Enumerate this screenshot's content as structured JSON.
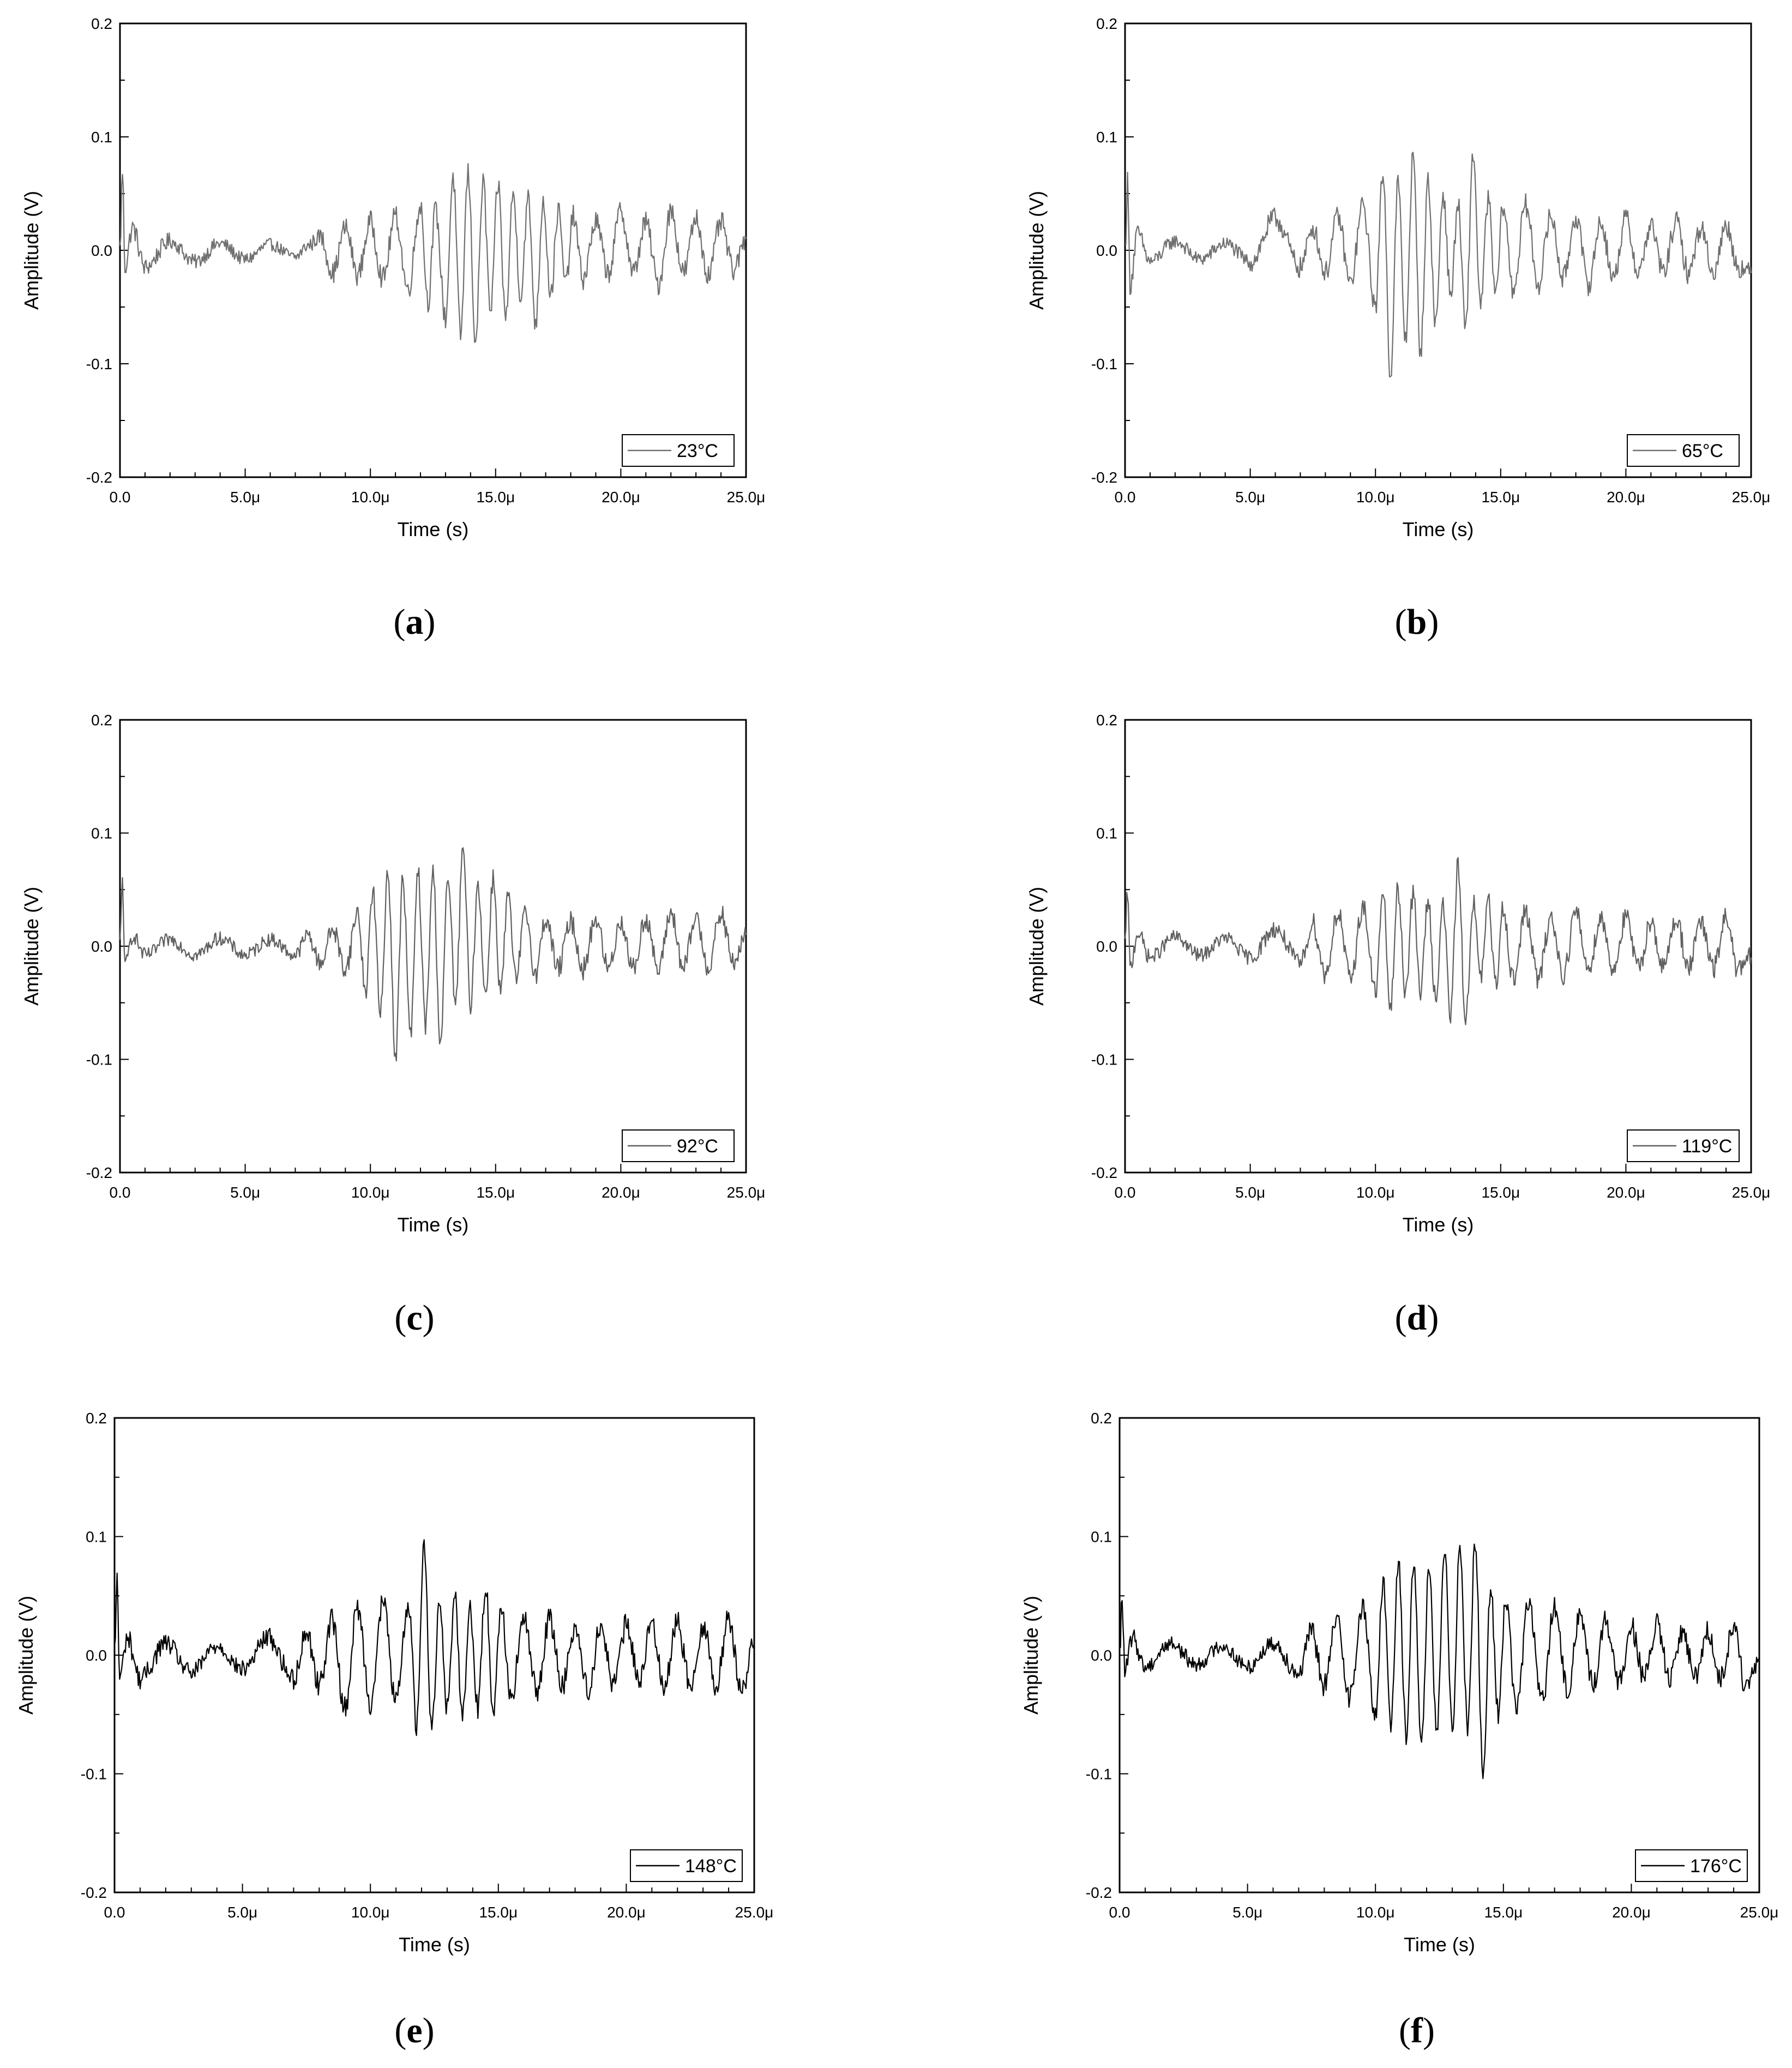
{
  "chart_data": [
    {
      "type": "line",
      "caption_letter": "a",
      "xlabel": "Time (s)",
      "ylabel": "Amplitude (V)",
      "xlim": [
        0,
        25
      ],
      "ylim": [
        -0.2,
        0.2
      ],
      "x_unit_note": "µs",
      "xticks": [
        "0.0",
        "5.0μ",
        "10.0μ",
        "15.0μ",
        "20.0μ",
        "25.0μ"
      ],
      "yticks": [
        "-0.2",
        "-0.1",
        "0.0",
        "0.1",
        "0.2"
      ],
      "legend": "23°C",
      "legend_position": "bottom-right",
      "line_color": "#707070",
      "series": [
        {
          "name": "23°C",
          "x": [
            0.0,
            0.1,
            0.2,
            0.5,
            1.0,
            2.0,
            3.0,
            4.0,
            5.0,
            6.0,
            7.0,
            7.5,
            8.0,
            8.5,
            9.0,
            9.5,
            10.0,
            10.5,
            11.0,
            11.5,
            12.0,
            12.3,
            12.6,
            13.0,
            13.3,
            13.6,
            13.9,
            14.2,
            14.5,
            14.8,
            15.1,
            15.4,
            15.7,
            16.0,
            16.3,
            16.6,
            16.9,
            17.2,
            17.5,
            17.8,
            18.1,
            18.5,
            19.0,
            19.5,
            20.0,
            20.5,
            21.0,
            21.5,
            22.0,
            22.5,
            23.0,
            23.5,
            24.0,
            24.5,
            25.0
          ],
          "y": [
            0.0,
            0.07,
            -0.015,
            0.02,
            -0.015,
            0.008,
            -0.01,
            0.006,
            -0.008,
            0.005,
            -0.006,
            0.004,
            0.012,
            -0.02,
            0.02,
            -0.022,
            0.025,
            -0.025,
            0.03,
            -0.035,
            0.04,
            -0.045,
            0.035,
            -0.06,
            0.065,
            -0.075,
            0.068,
            -0.08,
            0.06,
            -0.055,
            0.058,
            -0.06,
            0.05,
            -0.04,
            0.045,
            -0.065,
            0.045,
            -0.04,
            0.035,
            -0.03,
            0.03,
            -0.025,
            0.025,
            -0.02,
            0.035,
            -0.02,
            0.025,
            -0.03,
            0.035,
            -0.02,
            0.028,
            -0.022,
            0.025,
            -0.018,
            0.01
          ]
        }
      ]
    },
    {
      "type": "line",
      "caption_letter": "b",
      "xlabel": "Time (s)",
      "ylabel": "Amplitude (V)",
      "xlim": [
        0,
        25
      ],
      "ylim": [
        -0.2,
        0.2
      ],
      "xticks": [
        "0.0",
        "5.0μ",
        "10.0μ",
        "15.0μ",
        "20.0μ",
        "25.0μ"
      ],
      "yticks": [
        "-0.2",
        "-0.1",
        "0.0",
        "0.1",
        "0.2"
      ],
      "legend": "65°C",
      "legend_position": "bottom-right",
      "line_color": "#707070",
      "series": [
        {
          "name": "65°C",
          "x": [
            0.0,
            0.1,
            0.2,
            0.5,
            1.0,
            2.0,
            3.0,
            4.0,
            5.0,
            6.0,
            7.0,
            7.5,
            8.0,
            8.5,
            9.0,
            9.5,
            10.0,
            10.3,
            10.6,
            10.9,
            11.2,
            11.5,
            11.8,
            12.1,
            12.4,
            12.7,
            13.0,
            13.3,
            13.6,
            13.9,
            14.2,
            14.5,
            14.8,
            15.1,
            15.5,
            16.0,
            16.5,
            17.0,
            17.5,
            18.0,
            18.5,
            19.0,
            19.5,
            20.0,
            20.5,
            21.0,
            21.5,
            22.0,
            22.5,
            23.0,
            23.5,
            24.0,
            24.5,
            25.0
          ],
          "y": [
            0.0,
            0.06,
            -0.03,
            0.015,
            -0.01,
            0.008,
            -0.008,
            0.006,
            -0.01,
            0.028,
            -0.015,
            0.02,
            -0.02,
            0.03,
            -0.03,
            0.04,
            -0.05,
            0.07,
            -0.11,
            0.06,
            -0.08,
            0.083,
            -0.09,
            0.06,
            -0.065,
            0.05,
            -0.04,
            0.04,
            -0.07,
            0.085,
            -0.05,
            0.045,
            -0.04,
            0.04,
            -0.035,
            0.04,
            -0.03,
            0.03,
            -0.025,
            0.03,
            -0.03,
            0.025,
            -0.025,
            0.028,
            -0.02,
            0.022,
            -0.02,
            0.025,
            -0.02,
            0.02,
            -0.02,
            0.022,
            -0.015,
            -0.02
          ]
        }
      ]
    },
    {
      "type": "line",
      "caption_letter": "c",
      "xlabel": "Time (s)",
      "ylabel": "Amplitude (V)",
      "xlim": [
        0,
        25
      ],
      "ylim": [
        -0.2,
        0.2
      ],
      "xticks": [
        "0.0",
        "5.0μ",
        "10.0μ",
        "15.0μ",
        "20.0μ",
        "25.0μ"
      ],
      "yticks": [
        "-0.2",
        "-0.1",
        "0.0",
        "0.1",
        "0.2"
      ],
      "legend": "92°C",
      "legend_position": "bottom-right",
      "line_color": "#606060",
      "series": [
        {
          "name": "92°C",
          "x": [
            0.0,
            0.1,
            0.2,
            0.5,
            1.0,
            2.0,
            3.0,
            4.0,
            5.0,
            6.0,
            7.0,
            7.5,
            8.0,
            8.5,
            9.0,
            9.5,
            9.8,
            10.1,
            10.4,
            10.7,
            11.0,
            11.3,
            11.6,
            11.9,
            12.2,
            12.5,
            12.8,
            13.1,
            13.4,
            13.7,
            14.0,
            14.3,
            14.6,
            14.9,
            15.2,
            15.5,
            15.8,
            16.2,
            16.6,
            17.0,
            17.5,
            18.0,
            18.5,
            19.0,
            19.5,
            20.0,
            20.5,
            21.0,
            21.5,
            22.0,
            22.5,
            23.0,
            23.5,
            24.0,
            24.5,
            25.0
          ],
          "y": [
            0.0,
            0.06,
            -0.02,
            0.01,
            -0.008,
            0.006,
            -0.008,
            0.007,
            -0.008,
            0.006,
            -0.008,
            0.01,
            -0.015,
            0.015,
            -0.02,
            0.03,
            -0.04,
            0.05,
            -0.06,
            0.068,
            -0.098,
            0.06,
            -0.08,
            0.065,
            -0.07,
            0.065,
            -0.085,
            0.06,
            -0.05,
            0.085,
            -0.05,
            0.055,
            -0.045,
            0.06,
            -0.04,
            0.045,
            -0.03,
            0.03,
            -0.025,
            0.025,
            -0.02,
            0.022,
            -0.02,
            0.025,
            -0.02,
            0.022,
            -0.02,
            0.025,
            -0.022,
            0.03,
            -0.02,
            0.025,
            -0.018,
            0.028,
            -0.015,
            0.01
          ]
        }
      ]
    },
    {
      "type": "line",
      "caption_letter": "d",
      "xlabel": "Time (s)",
      "ylabel": "Amplitude (V)",
      "xlim": [
        0,
        25
      ],
      "ylim": [
        -0.2,
        0.2
      ],
      "xticks": [
        "0.0",
        "5.0μ",
        "10.0μ",
        "15.0μ",
        "20.0μ",
        "25.0μ"
      ],
      "yticks": [
        "-0.2",
        "-0.1",
        "0.0",
        "0.1",
        "0.2"
      ],
      "legend": "119°C",
      "legend_position": "bottom-right",
      "line_color": "#606060",
      "series": [
        {
          "name": "119°C",
          "x": [
            0.0,
            0.1,
            0.2,
            0.5,
            1.0,
            2.0,
            3.0,
            4.0,
            5.0,
            6.0,
            7.0,
            7.5,
            8.0,
            8.5,
            9.0,
            9.5,
            10.0,
            10.3,
            10.6,
            10.9,
            11.2,
            11.5,
            11.8,
            12.1,
            12.4,
            12.7,
            13.0,
            13.3,
            13.6,
            13.9,
            14.2,
            14.5,
            14.8,
            15.1,
            15.5,
            16.0,
            16.5,
            17.0,
            17.5,
            18.0,
            18.5,
            19.0,
            19.5,
            20.0,
            20.5,
            21.0,
            21.5,
            22.0,
            22.5,
            23.0,
            23.5,
            24.0,
            24.5,
            25.0
          ],
          "y": [
            0.0,
            0.05,
            -0.02,
            0.012,
            -0.01,
            0.008,
            -0.008,
            0.007,
            -0.01,
            0.015,
            -0.015,
            0.02,
            -0.025,
            0.03,
            -0.03,
            0.035,
            -0.04,
            0.045,
            -0.055,
            0.05,
            -0.04,
            0.045,
            -0.04,
            0.04,
            -0.045,
            0.035,
            -0.06,
            0.072,
            -0.068,
            0.04,
            -0.03,
            0.04,
            -0.035,
            0.035,
            -0.03,
            0.03,
            -0.03,
            0.025,
            -0.025,
            0.03,
            -0.02,
            0.025,
            -0.02,
            0.025,
            -0.02,
            0.022,
            -0.02,
            0.025,
            -0.018,
            0.02,
            -0.02,
            0.025,
            -0.022,
            -0.01
          ]
        }
      ]
    },
    {
      "type": "line",
      "caption_letter": "e",
      "xlabel": "Time (s)",
      "ylabel": "Amplitude (V)",
      "xlim": [
        0,
        25
      ],
      "ylim": [
        -0.2,
        0.2
      ],
      "xticks": [
        "0.0",
        "5.0μ",
        "10.0μ",
        "15.0μ",
        "20.0μ",
        "25.0μ"
      ],
      "yticks": [
        "-0.2",
        "-0.1",
        "0.0",
        "0.1",
        "0.2"
      ],
      "legend": "148°C",
      "legend_position": "bottom-right",
      "line_color": "#000000",
      "series": [
        {
          "name": "148°C",
          "x": [
            0.0,
            0.1,
            0.2,
            0.5,
            1.0,
            2.0,
            3.0,
            4.0,
            5.0,
            6.0,
            7.0,
            7.5,
            8.0,
            8.5,
            9.0,
            9.5,
            10.0,
            10.5,
            11.0,
            11.5,
            11.8,
            12.1,
            12.4,
            12.7,
            13.0,
            13.3,
            13.6,
            13.9,
            14.2,
            14.5,
            14.8,
            15.1,
            15.5,
            16.0,
            16.5,
            17.0,
            17.5,
            18.0,
            18.5,
            19.0,
            19.5,
            20.0,
            20.5,
            21.0,
            21.5,
            22.0,
            22.5,
            23.0,
            23.5,
            24.0,
            24.5,
            25.0
          ],
          "y": [
            0.0,
            0.065,
            -0.02,
            0.015,
            -0.02,
            0.01,
            -0.015,
            0.008,
            -0.012,
            0.015,
            -0.02,
            0.02,
            -0.025,
            0.03,
            -0.045,
            0.04,
            -0.04,
            0.045,
            -0.04,
            0.045,
            -0.06,
            0.092,
            -0.065,
            0.05,
            -0.045,
            0.05,
            -0.05,
            0.04,
            -0.045,
            0.058,
            -0.045,
            0.04,
            -0.035,
            0.03,
            -0.03,
            0.03,
            -0.025,
            0.025,
            -0.03,
            0.025,
            -0.025,
            0.025,
            -0.02,
            0.025,
            -0.025,
            0.028,
            -0.025,
            0.025,
            -0.025,
            0.03,
            -0.03,
            0.01
          ]
        }
      ]
    },
    {
      "type": "line",
      "caption_letter": "f",
      "xlabel": "Time (s)",
      "ylabel": "Amplitude (V)",
      "xlim": [
        0,
        25
      ],
      "ylim": [
        -0.2,
        0.2
      ],
      "xticks": [
        "0.0",
        "5.0μ",
        "10.0μ",
        "15.0μ",
        "20.0μ",
        "25.0μ"
      ],
      "yticks": [
        "-0.2",
        "-0.1",
        "0.0",
        "0.1",
        "0.2"
      ],
      "legend": "176°C",
      "legend_position": "bottom-right",
      "line_color": "#000000",
      "series": [
        {
          "name": "176°C",
          "x": [
            0.0,
            0.1,
            0.2,
            0.5,
            1.0,
            2.0,
            3.0,
            4.0,
            5.0,
            6.0,
            7.0,
            7.5,
            8.0,
            8.5,
            9.0,
            9.5,
            10.0,
            10.3,
            10.6,
            10.9,
            11.2,
            11.5,
            11.8,
            12.1,
            12.4,
            12.7,
            13.0,
            13.3,
            13.6,
            13.9,
            14.2,
            14.5,
            14.8,
            15.1,
            15.5,
            16.0,
            16.5,
            17.0,
            17.5,
            18.0,
            18.5,
            19.0,
            19.5,
            20.0,
            20.5,
            21.0,
            21.5,
            22.0,
            22.5,
            23.0,
            23.5,
            24.0,
            24.5,
            25.0
          ],
          "y": [
            0.0,
            0.05,
            -0.015,
            0.015,
            -0.01,
            0.01,
            -0.008,
            0.008,
            -0.01,
            0.01,
            -0.015,
            0.02,
            -0.025,
            0.03,
            -0.035,
            0.04,
            -0.05,
            0.06,
            -0.055,
            0.08,
            -0.07,
            0.08,
            -0.075,
            0.075,
            -0.07,
            0.09,
            -0.065,
            0.095,
            -0.06,
            0.098,
            -0.102,
            0.055,
            -0.05,
            0.05,
            -0.045,
            0.045,
            -0.04,
            0.04,
            -0.03,
            0.035,
            -0.025,
            0.03,
            -0.025,
            0.025,
            -0.02,
            0.025,
            -0.02,
            0.02,
            -0.018,
            0.02,
            -0.02,
            0.025,
            -0.03,
            -0.005
          ]
        }
      ]
    }
  ]
}
